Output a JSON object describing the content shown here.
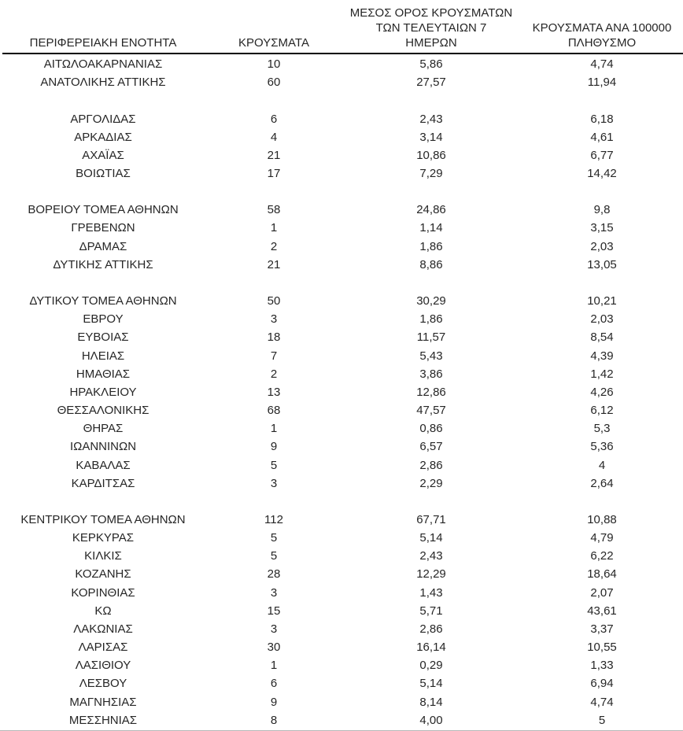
{
  "page": {
    "background": "#ffffff",
    "text_color": "#262626",
    "rule_color": "#000000"
  },
  "table": {
    "headers": {
      "region": "ΠΕΡΙΦΕΡΕΙΑΚΗ ΕΝΟΤΗΤΑ",
      "cases": "ΚΡΟΥΣΜΑΤΑ",
      "avg7_line1": "ΜΕΣΟΣ ΟΡΟΣ ΚΡΟΥΣΜΑΤΩΝ",
      "avg7_line2": "ΤΩΝ ΤΕΛΕΥΤΑΙΩΝ 7",
      "avg7_line3": "ΗΜΕΡΩΝ",
      "per100k_line1": "ΚΡΟΥΣΜΑΤΑ ΑΝΑ 100000",
      "per100k_line2": "ΠΛΗΘΥΣΜΟ"
    },
    "spacer_after": [
      "ΑΝΑΤΟΛΙΚΗΣ ΑΤΤΙΚΗΣ",
      "ΒΟΙΩΤΙΑΣ",
      "ΔΥΤΙΚΗΣ ΑΤΤΙΚΗΣ",
      "ΚΑΡΔΙΤΣΑΣ"
    ]
  },
  "chart_data": {
    "type": "table",
    "columns": [
      "ΠΕΡΙΦΕΡΕΙΑΚΗ ΕΝΟΤΗΤΑ",
      "ΚΡΟΥΣΜΑΤΑ",
      "ΜΕΣΟΣ ΟΡΟΣ ΚΡΟΥΣΜΑΤΩΝ ΤΩΝ ΤΕΛΕΥΤΑΙΩΝ 7 ΗΜΕΡΩΝ",
      "ΚΡΟΥΣΜΑΤΑ ΑΝΑ 100000 ΠΛΗΘΥΣΜΟ"
    ],
    "rows": [
      [
        "ΑΙΤΩΛΟΑΚΑΡΝΑΝΙΑΣ",
        "10",
        "5,86",
        "4,74"
      ],
      [
        "ΑΝΑΤΟΛΙΚΗΣ ΑΤΤΙΚΗΣ",
        "60",
        "27,57",
        "11,94"
      ],
      [
        "ΑΡΓΟΛΙΔΑΣ",
        "6",
        "2,43",
        "6,18"
      ],
      [
        "ΑΡΚΑΔΙΑΣ",
        "4",
        "3,14",
        "4,61"
      ],
      [
        "ΑΧΑΪΑΣ",
        "21",
        "10,86",
        "6,77"
      ],
      [
        "ΒΟΙΩΤΙΑΣ",
        "17",
        "7,29",
        "14,42"
      ],
      [
        "ΒΟΡΕΙΟΥ ΤΟΜΕΑ ΑΘΗΝΩΝ",
        "58",
        "24,86",
        "9,8"
      ],
      [
        "ΓΡΕΒΕΝΩΝ",
        "1",
        "1,14",
        "3,15"
      ],
      [
        "ΔΡΑΜΑΣ",
        "2",
        "1,86",
        "2,03"
      ],
      [
        "ΔΥΤΙΚΗΣ ΑΤΤΙΚΗΣ",
        "21",
        "8,86",
        "13,05"
      ],
      [
        "ΔΥΤΙΚΟΥ ΤΟΜΕΑ ΑΘΗΝΩΝ",
        "50",
        "30,29",
        "10,21"
      ],
      [
        "ΕΒΡΟΥ",
        "3",
        "1,86",
        "2,03"
      ],
      [
        "ΕΥΒΟΙΑΣ",
        "18",
        "11,57",
        "8,54"
      ],
      [
        "ΗΛΕΙΑΣ",
        "7",
        "5,43",
        "4,39"
      ],
      [
        "ΗΜΑΘΙΑΣ",
        "2",
        "3,86",
        "1,42"
      ],
      [
        "ΗΡΑΚΛΕΙΟΥ",
        "13",
        "12,86",
        "4,26"
      ],
      [
        "ΘΕΣΣΑΛΟΝΙΚΗΣ",
        "68",
        "47,57",
        "6,12"
      ],
      [
        "ΘΗΡΑΣ",
        "1",
        "0,86",
        "5,3"
      ],
      [
        "ΙΩΑΝΝΙΝΩΝ",
        "9",
        "6,57",
        "5,36"
      ],
      [
        "ΚΑΒΑΛΑΣ",
        "5",
        "2,86",
        "4"
      ],
      [
        "ΚΑΡΔΙΤΣΑΣ",
        "3",
        "2,29",
        "2,64"
      ],
      [
        "ΚΕΝΤΡΙΚΟΥ ΤΟΜΕΑ ΑΘΗΝΩΝ",
        "112",
        "67,71",
        "10,88"
      ],
      [
        "ΚΕΡΚΥΡΑΣ",
        "5",
        "5,14",
        "4,79"
      ],
      [
        "ΚΙΛΚΙΣ",
        "5",
        "2,43",
        "6,22"
      ],
      [
        "ΚΟΖΑΝΗΣ",
        "28",
        "12,29",
        "18,64"
      ],
      [
        "ΚΟΡΙΝΘΙΑΣ",
        "3",
        "1,43",
        "2,07"
      ],
      [
        "ΚΩ",
        "15",
        "5,71",
        "43,61"
      ],
      [
        "ΛΑΚΩΝΙΑΣ",
        "3",
        "2,86",
        "3,37"
      ],
      [
        "ΛΑΡΙΣΑΣ",
        "30",
        "16,14",
        "10,55"
      ],
      [
        "ΛΑΣΙΘΙΟΥ",
        "1",
        "0,29",
        "1,33"
      ],
      [
        "ΛΕΣΒΟΥ",
        "6",
        "5,14",
        "6,94"
      ],
      [
        "ΜΑΓΝΗΣΙΑΣ",
        "9",
        "8,14",
        "4,74"
      ],
      [
        "ΜΕΣΣΗΝΙΑΣ",
        "8",
        "4,00",
        "5"
      ]
    ]
  }
}
